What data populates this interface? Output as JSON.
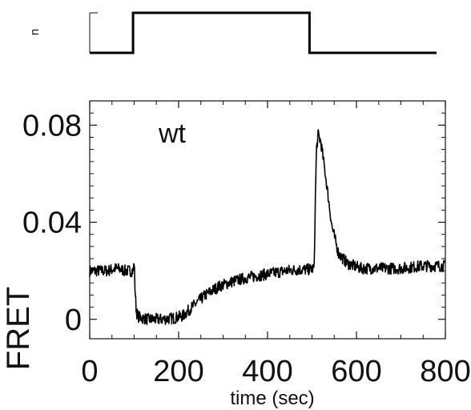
{
  "chart_data": [
    {
      "type": "line",
      "panel": "stimulus",
      "ylabel": "u",
      "xlim": [
        0,
        800
      ],
      "series": [
        {
          "x": [
            0,
            100,
            100,
            507,
            507,
            800
          ],
          "y": [
            0,
            0,
            1,
            1,
            0,
            0
          ]
        }
      ]
    },
    {
      "type": "line",
      "panel": "response",
      "annotation": "wt",
      "xlabel": "time (sec)",
      "ylabel": "FRET",
      "xlim": [
        0,
        800
      ],
      "ylim": [
        -0.008,
        0.09
      ],
      "xticks": [
        0,
        200,
        400,
        600,
        800
      ],
      "yticks": [
        0,
        0.04,
        0.08
      ],
      "xticklabels": [
        "0",
        "200",
        "400",
        "600",
        "800"
      ],
      "yticklabels": [
        "0",
        "0.04",
        "0.08"
      ],
      "series": [
        {
          "x": [
            0,
            20,
            40,
            60,
            80,
            98,
            100,
            102,
            105,
            110,
            130,
            160,
            190,
            210,
            230,
            260,
            290,
            320,
            350,
            380,
            410,
            440,
            470,
            490,
            505,
            507,
            510,
            514,
            520,
            530,
            545,
            560,
            580,
            610,
            650,
            700,
            750,
            800
          ],
          "y": [
            0.02,
            0.02,
            0.02,
            0.021,
            0.02,
            0.02,
            0.024,
            0.012,
            0.003,
            0.001,
            0.0,
            0.0,
            0.0005,
            0.0015,
            0.005,
            0.01,
            0.0135,
            0.0155,
            0.017,
            0.018,
            0.019,
            0.02,
            0.0205,
            0.0205,
            0.021,
            0.045,
            0.07,
            0.076,
            0.073,
            0.06,
            0.038,
            0.027,
            0.023,
            0.021,
            0.021,
            0.021,
            0.022,
            0.022
          ]
        }
      ]
    }
  ]
}
